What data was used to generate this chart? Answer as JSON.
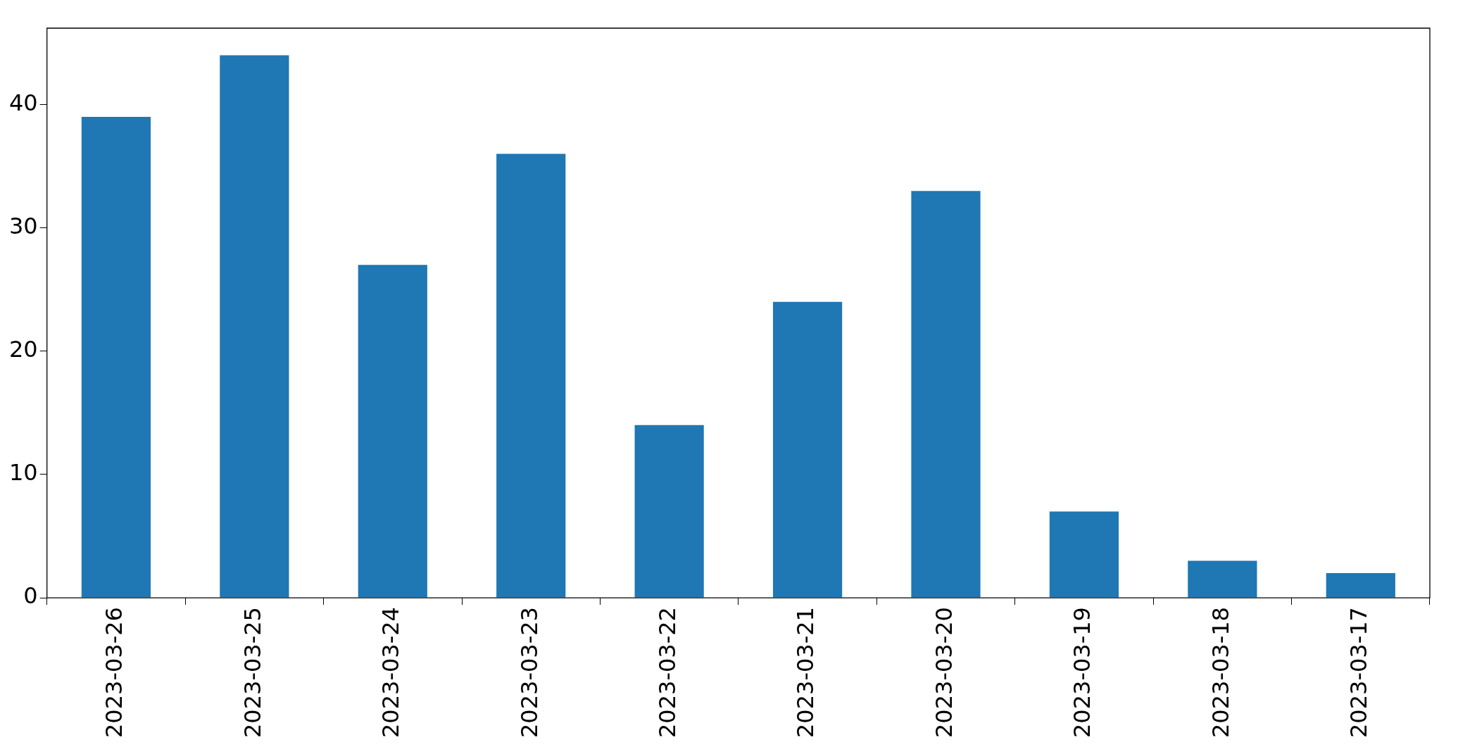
{
  "chart_data": {
    "type": "bar",
    "categories": [
      "2023-03-26",
      "2023-03-25",
      "2023-03-24",
      "2023-03-23",
      "2023-03-22",
      "2023-03-21",
      "2023-03-20",
      "2023-03-19",
      "2023-03-18",
      "2023-03-17"
    ],
    "values": [
      39,
      44,
      27,
      36,
      14,
      24,
      33,
      7,
      3,
      2
    ],
    "color": "#1f77b4",
    "ylim": [
      0,
      46.2
    ],
    "yticks": [
      0,
      10,
      20,
      30,
      40
    ],
    "grid": false,
    "legend": false
  }
}
